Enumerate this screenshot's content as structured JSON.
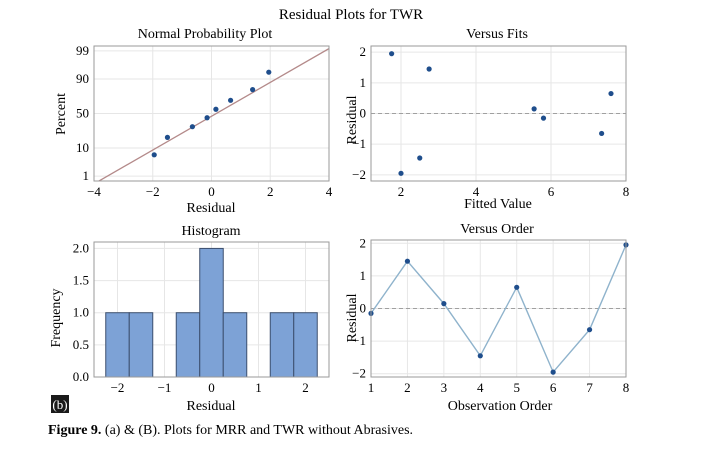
{
  "suptitle": "Residual Plots for TWR",
  "panel_badge": "(b)",
  "caption": {
    "label": "Figure 9.",
    "text": " (a) & (B). Plots for MRR and TWR without Abrasives."
  },
  "colors": {
    "point": "#1f4e8c",
    "fit_line": "#b48a8a",
    "bar_fill": "#7da2d6",
    "bar_edge": "#3c4f6e",
    "order_line": "#8fb3cc",
    "zero_line": "#a0a0a0",
    "grid": "#e6e6e6",
    "frame": "#9a9a9a"
  },
  "chart_data": [
    {
      "id": "normal_probability",
      "type": "scatter",
      "title": "Normal Probability Plot",
      "xlabel": "Residual",
      "ylabel": "Percent",
      "xlim": [
        -4,
        4
      ],
      "xticks": [
        -4,
        -2,
        0,
        2,
        4
      ],
      "yticks": [
        1,
        10,
        50,
        90,
        99
      ],
      "yscale": "normal-probability",
      "x": [
        -1.95,
        -1.5,
        -0.65,
        -0.15,
        0.15,
        0.65,
        1.4,
        1.95
      ],
      "y": [
        6.25,
        18.75,
        31.25,
        43.75,
        56.25,
        68.75,
        81.25,
        93.75
      ],
      "fit_line": {
        "x": [
          -4,
          4
        ],
        "y": [
          0.45,
          99.2
        ]
      },
      "grid": true
    },
    {
      "id": "versus_fits",
      "type": "scatter",
      "title": "Versus Fits",
      "xlabel": "Fitted Value",
      "ylabel": "Residual",
      "xlim": [
        1.2,
        8
      ],
      "ylim": [
        -2.2,
        2.2
      ],
      "xticks": [
        2,
        4,
        6,
        8
      ],
      "yticks": [
        -2,
        -1,
        0,
        1,
        2
      ],
      "x": [
        1.75,
        2.0,
        2.5,
        2.75,
        5.55,
        5.8,
        7.35,
        7.6
      ],
      "y": [
        1.95,
        -1.95,
        -1.45,
        1.45,
        0.15,
        -0.15,
        -0.65,
        0.65
      ],
      "reference_line": 0,
      "grid": true
    },
    {
      "id": "histogram",
      "type": "bar",
      "title": "Histogram",
      "xlabel": "Residual",
      "ylabel": "Frequency",
      "xlim": [
        -2.5,
        2.5
      ],
      "ylim": [
        0,
        2.1
      ],
      "xticks": [
        -2,
        -1,
        0,
        1,
        2
      ],
      "yticks": [
        0.0,
        0.5,
        1.0,
        1.5,
        2.0
      ],
      "ytick_labels": [
        "0.0",
        "0.5",
        "1.0",
        "1.5",
        "2.0"
      ],
      "bin_width": 0.5,
      "bin_centers": [
        -2.0,
        -1.5,
        -1.0,
        -0.5,
        0.0,
        0.5,
        1.0,
        1.5,
        2.0
      ],
      "values": [
        1,
        1,
        0,
        1,
        2,
        1,
        0,
        1,
        1
      ],
      "grid": true
    },
    {
      "id": "versus_order",
      "type": "line",
      "title": "Versus Order",
      "xlabel": "Observation Order",
      "ylabel": "Residual",
      "xlim": [
        1,
        8
      ],
      "ylim": [
        -2.1,
        2.1
      ],
      "xticks": [
        1,
        2,
        3,
        4,
        5,
        6,
        7,
        8
      ],
      "yticks": [
        -2,
        -1,
        0,
        1,
        2
      ],
      "x": [
        1,
        2,
        3,
        4,
        5,
        6,
        7,
        8
      ],
      "y": [
        -0.15,
        1.45,
        0.15,
        -1.45,
        0.65,
        -1.95,
        -0.65,
        1.95
      ],
      "reference_line": 0,
      "grid": true
    }
  ]
}
